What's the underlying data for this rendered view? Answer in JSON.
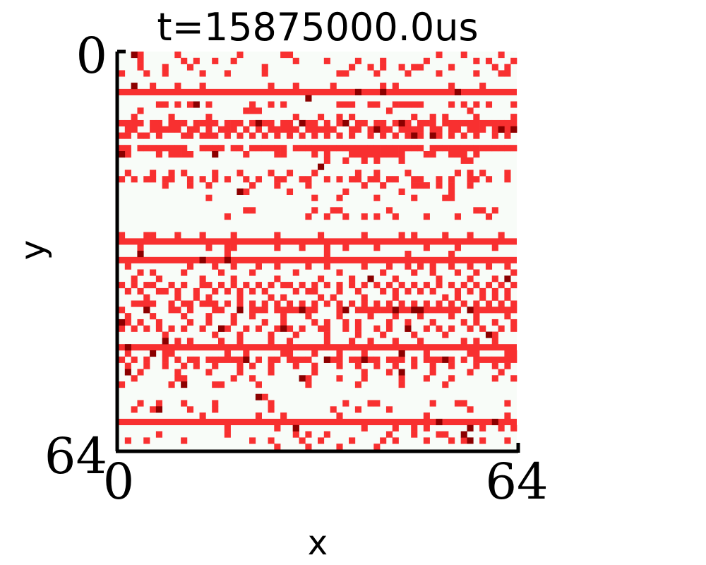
{
  "chart_data": {
    "type": "heatmap",
    "title": "t=15875000.0us",
    "xlabel": "x",
    "ylabel": "y",
    "xlim": [
      0,
      64
    ],
    "ylim": [
      64,
      0
    ],
    "x_ticks": [
      "0",
      "64"
    ],
    "y_ticks": [
      "0",
      "64"
    ],
    "grid": false,
    "colors": {
      "background": "#f8fcf8",
      "event": "#f83030",
      "dense_event": "#8b0000",
      "axis": "#000000"
    },
    "full_rows": [
      6,
      30,
      33,
      47,
      59
    ],
    "rows": {
      "0": [
        3,
        9,
        19,
        26,
        27,
        51,
        55,
        61
      ],
      "1": [
        3,
        10,
        12,
        15,
        18,
        28,
        33,
        38,
        42,
        49,
        57,
        59,
        63
      ],
      "2": [
        3,
        7,
        11,
        23,
        37,
        40,
        42,
        45,
        47,
        48,
        53,
        60,
        62
      ],
      "3": [
        0,
        4,
        7,
        13,
        17,
        23,
        35,
        36,
        41,
        46,
        51,
        57,
        61,
        62
      ],
      "5": [
        5,
        9,
        13,
        24,
        28,
        34,
        42,
        44,
        53,
        58
      ],
      "8": [
        6,
        7,
        9,
        11,
        14,
        21,
        24,
        26,
        35,
        36,
        37,
        40,
        41,
        44,
        45,
        46,
        47,
        48,
        53,
        55,
        57,
        59,
        63
      ],
      "9": [
        3,
        20,
        21,
        22,
        43,
        56
      ],
      "10": [
        2,
        8,
        14,
        28,
        32,
        35,
        37,
        47,
        50,
        52,
        57,
        63
      ],
      "11": [
        0,
        1,
        2,
        3,
        5,
        6,
        8,
        9,
        10,
        12,
        13,
        14,
        15,
        17,
        18,
        19,
        21,
        22,
        23,
        24,
        26,
        27,
        29,
        30,
        31,
        33,
        35,
        36,
        38,
        39,
        41,
        42,
        44,
        45,
        46,
        48,
        49,
        50,
        52,
        53,
        54,
        55,
        56,
        57,
        58,
        59,
        60,
        61,
        62,
        63
      ],
      "12": [
        1,
        2,
        5,
        6,
        7,
        8,
        9,
        11,
        12,
        14,
        16,
        17,
        18,
        20,
        22,
        24,
        25,
        26,
        27,
        28,
        30,
        31,
        32,
        33,
        34,
        37,
        38,
        40,
        42,
        43,
        45,
        46,
        47,
        48,
        50,
        51,
        53,
        54,
        56,
        57,
        58,
        60,
        61,
        62,
        63
      ],
      "13": [
        0,
        1,
        3,
        4,
        6,
        10,
        11,
        13,
        14,
        15,
        17,
        19,
        21,
        23,
        25,
        27,
        29,
        31,
        33,
        35,
        37,
        40,
        42,
        44,
        46,
        48,
        51,
        53,
        55,
        57,
        60,
        62
      ],
      "15": [
        0,
        1,
        3,
        4,
        5,
        6,
        7,
        8,
        9,
        10,
        13,
        14,
        15,
        16,
        18,
        19,
        21,
        22,
        23,
        24,
        25,
        26,
        28,
        29,
        30,
        31,
        32,
        33,
        34,
        35,
        36,
        37,
        38,
        39,
        40,
        41,
        42,
        43,
        44,
        45,
        46,
        47,
        48,
        50,
        51,
        52,
        53,
        54,
        55,
        56,
        57,
        58,
        59,
        60,
        61,
        62,
        63
      ],
      "16": [
        1,
        6,
        8,
        9,
        10,
        11,
        20,
        25,
        26,
        31,
        33,
        37,
        38,
        39,
        40,
        41,
        42,
        43,
        44,
        45,
        49,
        50,
        53,
        54,
        55,
        57
      ],
      "17": [
        33,
        36,
        39,
        41,
        45,
        55,
        56
      ],
      "19": [
        1,
        5,
        8,
        10,
        15,
        19,
        24,
        27,
        31,
        38,
        41,
        46,
        54,
        56,
        58,
        62
      ],
      "20": [
        0,
        2,
        4,
        5,
        7,
        8,
        11,
        13,
        15,
        17,
        20,
        22,
        25,
        26,
        29,
        30,
        33,
        35,
        37,
        38,
        40,
        41,
        43,
        44,
        47,
        48,
        51,
        53,
        56,
        57,
        59,
        62
      ],
      "21": [
        7,
        11,
        14,
        21,
        25,
        30,
        39,
        42,
        47,
        48,
        49,
        51,
        53,
        56
      ],
      "22": [
        19,
        20,
        27,
        36,
        45,
        53
      ],
      "23": [
        14,
        31,
        35,
        41,
        47,
        52,
        53
      ],
      "25": [
        20,
        21,
        31,
        34,
        35,
        43,
        57,
        58,
        60
      ],
      "26": [
        17,
        30,
        33,
        36,
        39,
        41,
        44,
        49,
        54,
        59
      ],
      "29": [
        0,
        4,
        5,
        9,
        13,
        18,
        25,
        32,
        39,
        45,
        47,
        52,
        56,
        61
      ],
      "31": [
        3,
        14,
        17,
        18,
        25,
        29,
        33,
        36,
        41,
        49,
        54,
        60
      ],
      "32": [
        3,
        17,
        33,
        46,
        53
      ],
      "34": [
        1,
        11,
        15,
        18,
        22,
        25,
        30,
        33,
        39,
        43,
        46,
        48,
        50,
        53,
        56,
        59,
        62
      ],
      "35": [
        3,
        5,
        10,
        16,
        21,
        28,
        35,
        42,
        47,
        50,
        54,
        57,
        63
      ],
      "36": [
        2,
        6,
        13,
        18,
        25,
        32,
        37,
        44,
        51,
        56,
        60
      ],
      "37": [
        0,
        2,
        4,
        5,
        8,
        10,
        13,
        14,
        16,
        18,
        20,
        22,
        24,
        26,
        27,
        29,
        31,
        33,
        35,
        37,
        39,
        41,
        43,
        45,
        47,
        49,
        51,
        53,
        55,
        57,
        59,
        61,
        63
      ],
      "38": [
        1,
        3,
        6,
        7,
        9,
        12,
        15,
        17,
        19,
        21,
        23,
        28,
        30,
        31,
        35,
        38,
        42,
        44,
        46,
        48,
        50,
        54,
        56,
        58,
        60,
        62
      ],
      "39": [
        4,
        9,
        12,
        14,
        19,
        24,
        26,
        32,
        34,
        39,
        44,
        52,
        54,
        58,
        60,
        62
      ],
      "40": [
        2,
        3,
        4,
        5,
        8,
        10,
        11,
        13,
        14,
        15,
        17,
        19,
        21,
        23,
        25,
        27,
        29,
        31,
        33,
        35,
        37,
        39,
        41,
        43,
        45,
        47,
        49,
        51,
        53,
        55,
        57,
        59,
        61,
        63
      ],
      "41": [
        0,
        4,
        8,
        9,
        11,
        15,
        16,
        19,
        21,
        22,
        23,
        25,
        26,
        27,
        28,
        29,
        30,
        31,
        35,
        36,
        38,
        39,
        40,
        41,
        42,
        43,
        44,
        45,
        46,
        47,
        48,
        49,
        50,
        51,
        52,
        53,
        54,
        56,
        57,
        58,
        59,
        60,
        61,
        62,
        63
      ],
      "42": [
        1,
        5,
        10,
        14,
        18,
        21,
        26,
        30,
        35,
        40,
        44,
        48,
        53,
        57,
        62
      ],
      "43": [
        0,
        1,
        3,
        6,
        11,
        14,
        18,
        23,
        26,
        31,
        33,
        36,
        38,
        43,
        46,
        50,
        55,
        57,
        60,
        63
      ],
      "44": [
        0,
        2,
        4,
        6,
        8,
        10,
        13,
        16,
        17,
        20,
        22,
        25,
        27,
        29,
        32,
        33,
        36,
        38,
        41,
        43,
        46,
        49,
        51,
        53,
        56,
        58,
        61,
        63
      ],
      "45": [
        7,
        15,
        19,
        24,
        28,
        33,
        38,
        42,
        47,
        52,
        60,
        65
      ],
      "46": [
        9,
        11,
        16,
        19,
        24,
        27,
        33,
        37,
        40,
        44,
        48,
        55,
        57,
        60
      ],
      "48": [
        1,
        7,
        8,
        17,
        20,
        26,
        27,
        31,
        35,
        39,
        45,
        49,
        56,
        57,
        62,
        63
      ],
      "49": [
        0,
        2,
        4,
        7,
        9,
        11,
        12,
        14,
        15,
        16,
        17,
        18,
        19,
        20,
        22,
        24,
        25,
        27,
        28,
        29,
        30,
        33,
        34,
        35,
        37,
        38,
        39,
        40,
        41,
        43,
        44,
        45,
        47,
        49,
        50,
        51,
        53,
        55,
        57,
        58,
        59,
        60,
        61,
        62,
        63
      ],
      "50": [
        1,
        4,
        7,
        10,
        12,
        15,
        19,
        21,
        24,
        28,
        31,
        35,
        38,
        41,
        44,
        47,
        50,
        53,
        57,
        60,
        62
      ],
      "51": [
        3,
        9,
        14,
        19,
        24,
        31,
        39,
        43,
        50,
        56,
        61
      ],
      "52": [
        2,
        9,
        10,
        18,
        21,
        30,
        35,
        39,
        45,
        49,
        53,
        60,
        63
      ],
      "53": [
        0,
        8,
        15,
        16,
        22,
        30,
        38,
        45,
        52
      ],
      "55": [
        23
      ],
      "56": [
        3,
        6,
        10,
        15,
        24,
        36,
        40,
        41,
        50,
        54,
        55,
        62
      ],
      "57": [
        2,
        5,
        11,
        15,
        24,
        34,
        38,
        43,
        56
      ],
      "58": [
        13,
        22,
        26,
        35,
        49,
        62
      ],
      "60": [
        17,
        25,
        28,
        39,
        44,
        47,
        49,
        58,
        61,
        63
      ],
      "61": [
        6,
        17,
        28,
        30,
        33,
        43,
        47,
        51,
        52
      ],
      "62": [
        1,
        4,
        10,
        21,
        24,
        29,
        32,
        37,
        42,
        44,
        49,
        53,
        55,
        58,
        62
      ],
      "63": [
        25,
        30,
        35,
        41
      ]
    },
    "dense_cells": [
      [
        2,
        0
      ],
      [
        38,
        6
      ],
      [
        42,
        6
      ],
      [
        54,
        6
      ],
      [
        2,
        5
      ],
      [
        12,
        8
      ],
      [
        30,
        7
      ],
      [
        47,
        13
      ],
      [
        50,
        13
      ],
      [
        61,
        12
      ],
      [
        22,
        11
      ],
      [
        29,
        11
      ],
      [
        36,
        11
      ],
      [
        41,
        12
      ],
      [
        45,
        11
      ],
      [
        63,
        12
      ],
      [
        0,
        16
      ],
      [
        15,
        16
      ],
      [
        32,
        18
      ],
      [
        19,
        22
      ],
      [
        3,
        32
      ],
      [
        13,
        33
      ],
      [
        17,
        33
      ],
      [
        40,
        36
      ],
      [
        62,
        36
      ],
      [
        4,
        41
      ],
      [
        19,
        41
      ],
      [
        29,
        41
      ],
      [
        36,
        41
      ],
      [
        44,
        41
      ],
      [
        47,
        41
      ],
      [
        48,
        41
      ],
      [
        56,
        41
      ],
      [
        0,
        43
      ],
      [
        7,
        46
      ],
      [
        16,
        44
      ],
      [
        26,
        44
      ],
      [
        46,
        44
      ],
      [
        59,
        45
      ],
      [
        1,
        47
      ],
      [
        5,
        48
      ],
      [
        20,
        49
      ],
      [
        33,
        49
      ],
      [
        39,
        49
      ],
      [
        45,
        48
      ],
      [
        52,
        49
      ],
      [
        1,
        51
      ],
      [
        10,
        53
      ],
      [
        29,
        52
      ],
      [
        45,
        51
      ],
      [
        22,
        55
      ],
      [
        6,
        57
      ],
      [
        28,
        60
      ],
      [
        51,
        59
      ],
      [
        56,
        60
      ],
      [
        60,
        59
      ],
      [
        55,
        61
      ],
      [
        56,
        62
      ]
    ]
  }
}
